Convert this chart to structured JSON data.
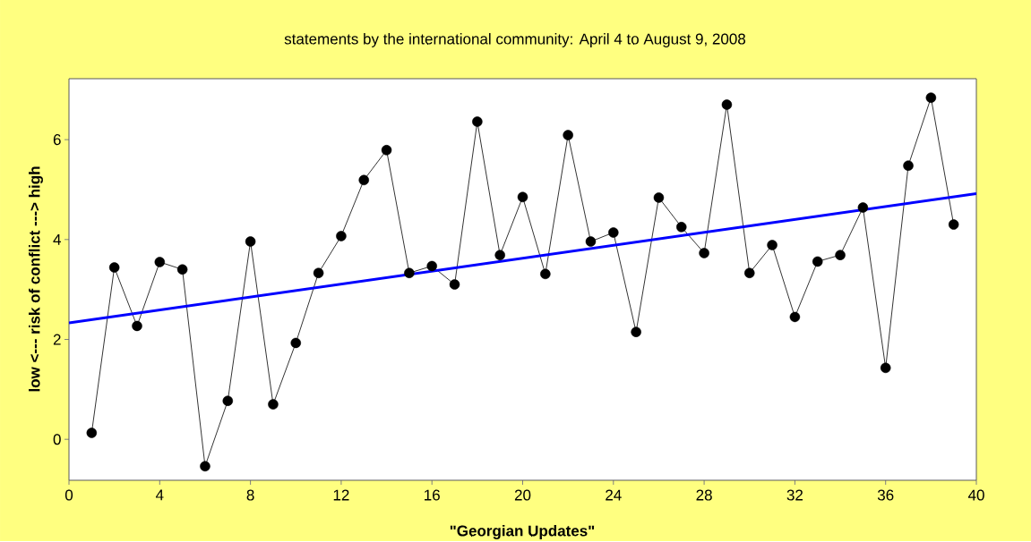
{
  "chart_data": {
    "type": "line",
    "title": "statements by the international community: April 4 to August 9, 2008",
    "xlabel": "\"Georgian Updates\"",
    "ylabel": "low <--- risk of conflict ---> high",
    "x": [
      1,
      2,
      3,
      4,
      5,
      6,
      7,
      8,
      9,
      10,
      11,
      12,
      13,
      14,
      15,
      16,
      17,
      18,
      19,
      20,
      21,
      22,
      23,
      24,
      25,
      26,
      27,
      28,
      29,
      30,
      31,
      32,
      33,
      34,
      35,
      36,
      37,
      38,
      39
    ],
    "xlim": [
      0,
      40
    ],
    "ylim": [
      -0.82,
      7.22
    ],
    "xticks": [
      0,
      4,
      8,
      12,
      16,
      20,
      24,
      28,
      32,
      36,
      40
    ],
    "yticks": [
      0,
      2,
      4,
      6
    ],
    "marker": "circle",
    "grid": false,
    "series": [
      {
        "color": "#000000",
        "values": [
          0.13,
          3.44,
          2.27,
          3.55,
          3.4,
          -0.54,
          0.77,
          3.96,
          0.7,
          1.93,
          3.33,
          4.07,
          5.19,
          5.79,
          3.33,
          3.47,
          3.1,
          6.36,
          3.69,
          4.85,
          3.31,
          6.09,
          3.96,
          4.14,
          2.15,
          4.84,
          4.25,
          3.73,
          6.7,
          3.33,
          3.89,
          2.45,
          3.56,
          3.69,
          4.64,
          1.43,
          5.48,
          6.84,
          4.3
        ]
      },
      {
        "type": "line",
        "color": "#0000ff",
        "marker": "none",
        "x": [
          0,
          40
        ],
        "values": [
          2.33,
          4.92
        ]
      }
    ]
  }
}
